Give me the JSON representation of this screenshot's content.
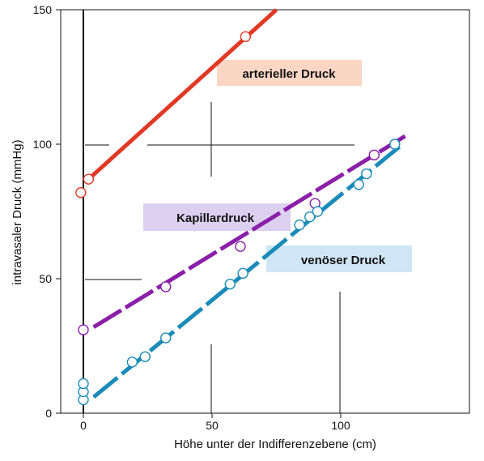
{
  "chart_data": {
    "type": "line",
    "xlabel": "Höhe unter der Indifferenzebene (cm)",
    "ylabel": "intravasaler Druck (mmHg)",
    "xlim": [
      -5,
      148
    ],
    "ylim": [
      0,
      150
    ],
    "x_ticks": [
      "0",
      "50",
      "100"
    ],
    "y_ticks": [
      "0",
      "50",
      "100",
      "150"
    ],
    "grid": false,
    "series": [
      {
        "name": "arterieller Druck",
        "color": "#e03a24",
        "line": {
          "x": [
            2,
            75
          ],
          "y": [
            87,
            150
          ]
        },
        "points": [
          {
            "x": -1,
            "y": 82
          },
          {
            "x": 2,
            "y": 87
          },
          {
            "x": 63,
            "y": 140
          }
        ]
      },
      {
        "name": "Kapillardruck",
        "color": "#8a1fa8",
        "line": {
          "x": [
            4,
            125
          ],
          "y": [
            32,
            103
          ]
        },
        "points": [
          {
            "x": 0,
            "y": 31
          },
          {
            "x": 32,
            "y": 47
          },
          {
            "x": 61,
            "y": 62
          },
          {
            "x": 90,
            "y": 78
          },
          {
            "x": 113,
            "y": 96
          }
        ]
      },
      {
        "name": "venöser Druck",
        "color": "#1a8bb8",
        "line": {
          "x": [
            4,
            124
          ],
          "y": [
            6,
            100
          ]
        },
        "points": [
          {
            "x": 0,
            "y": 5
          },
          {
            "x": 0,
            "y": 8
          },
          {
            "x": 0,
            "y": 11
          },
          {
            "x": 19,
            "y": 19
          },
          {
            "x": 24,
            "y": 21
          },
          {
            "x": 32,
            "y": 28
          },
          {
            "x": 57,
            "y": 48
          },
          {
            "x": 62,
            "y": 52
          },
          {
            "x": 84,
            "y": 70
          },
          {
            "x": 88,
            "y": 73
          },
          {
            "x": 91,
            "y": 75
          },
          {
            "x": 107,
            "y": 85
          },
          {
            "x": 110,
            "y": 89
          },
          {
            "x": 121,
            "y": 100
          }
        ]
      }
    ],
    "annotations": [
      {
        "text": "arterieller Druck",
        "bg": "#fcd6c4"
      },
      {
        "text": "Kapillardruck",
        "bg": "#dcd0f0"
      },
      {
        "text": "venöser Druck",
        "bg": "#cfe6f6"
      }
    ]
  }
}
